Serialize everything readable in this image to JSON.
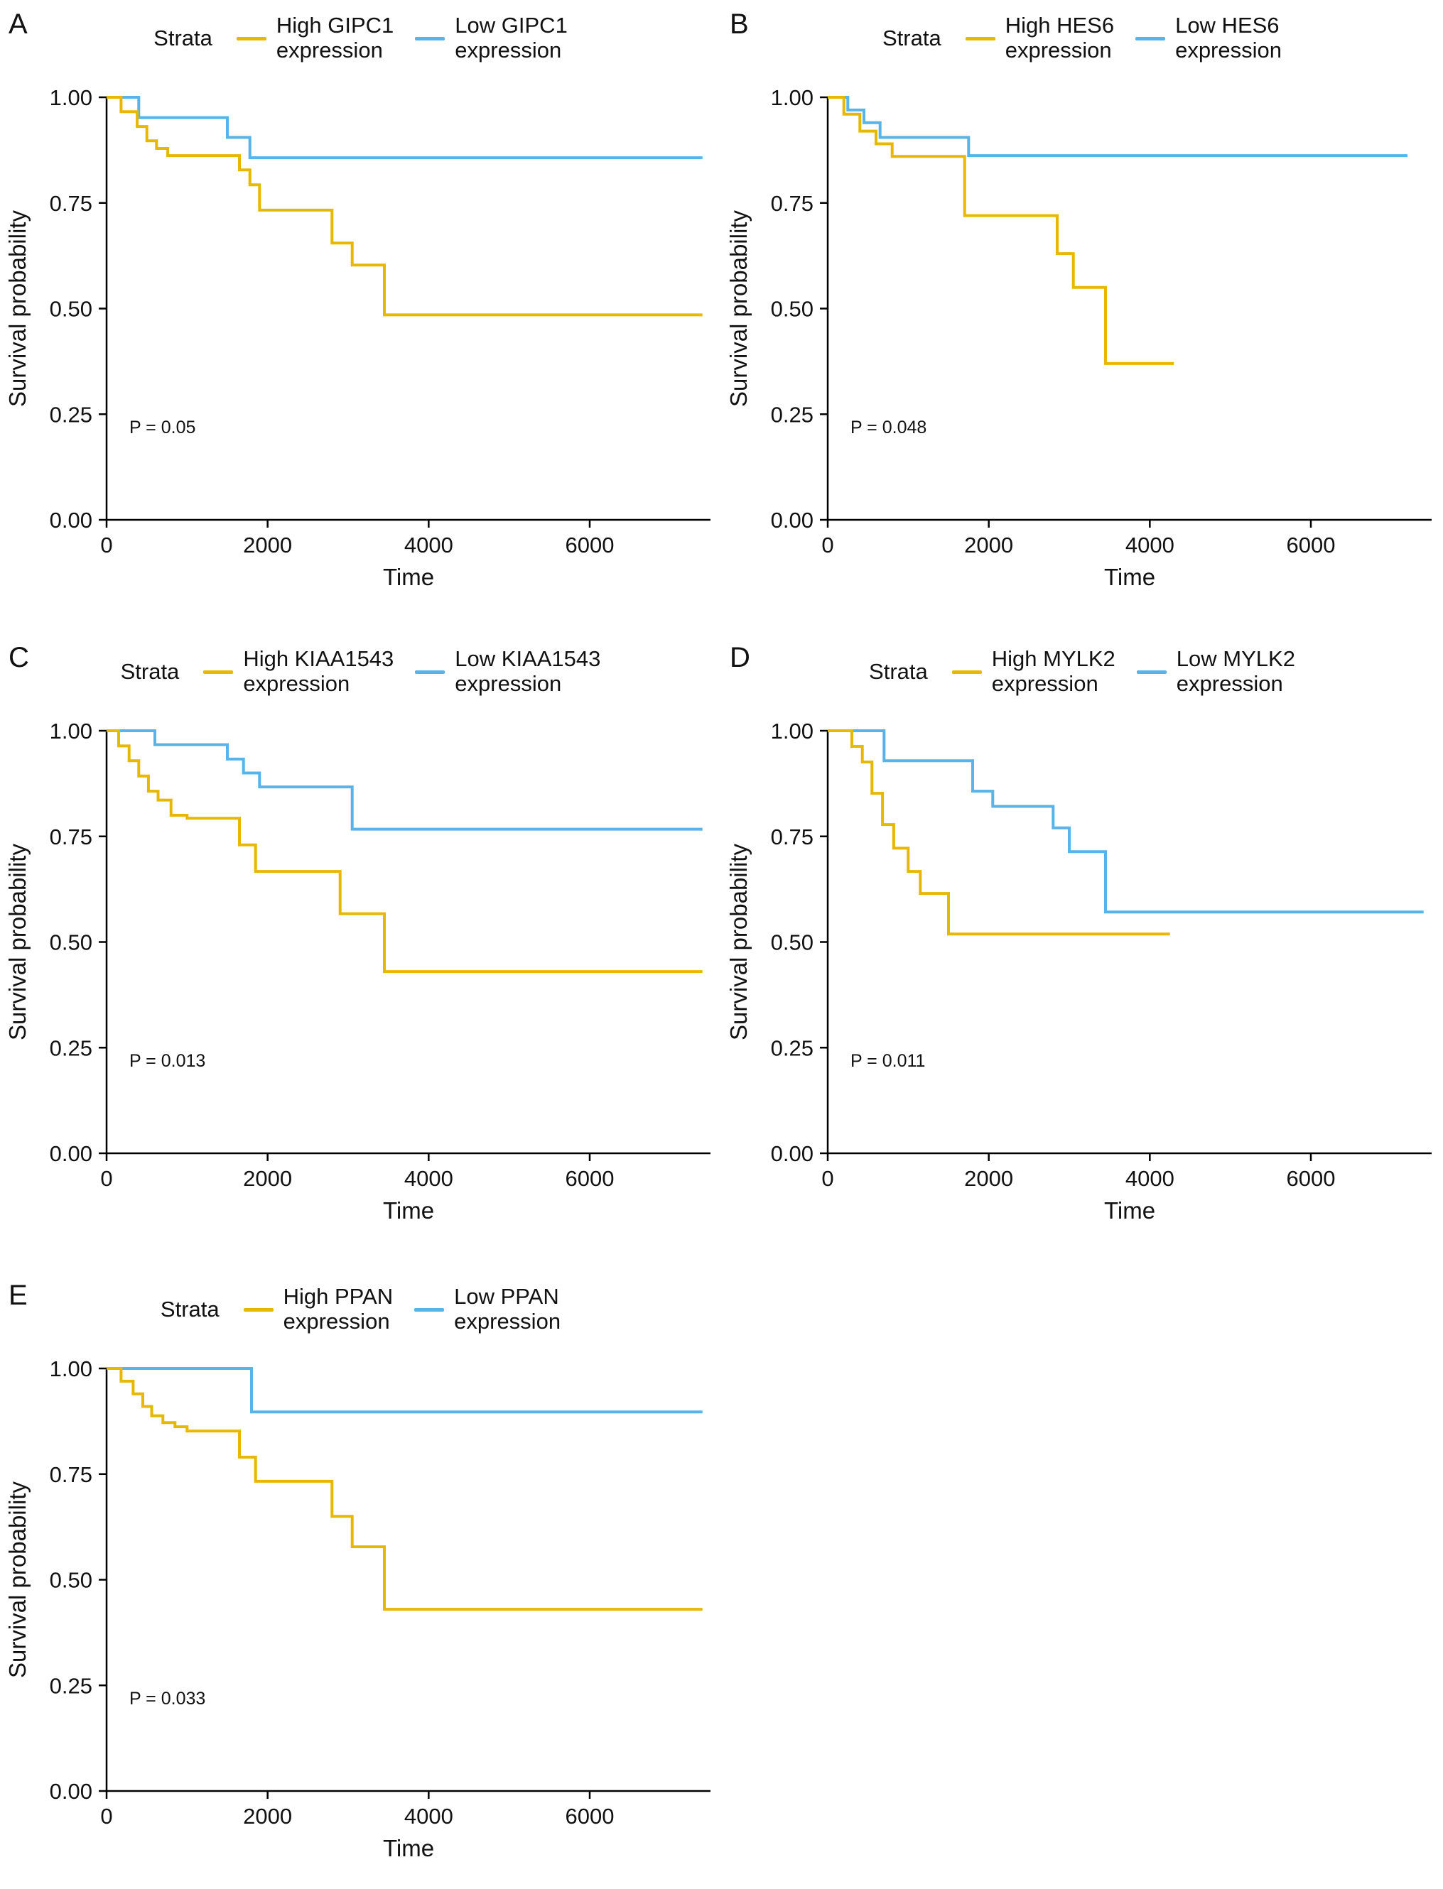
{
  "figure": {
    "background": "#ffffff",
    "legend_title": "Strata"
  },
  "colors": {
    "high": "#E7B800",
    "low": "#56B4E9",
    "axis": "#000000",
    "text": "#111111"
  },
  "chart_data": [
    {
      "type": "line",
      "subtype": "kaplan-meier-step",
      "panel": "A",
      "gene": "GIPC1",
      "legend_title": "Strata",
      "legend": [
        "High GIPC1\nexpression",
        "Low GIPC1\nexpression"
      ],
      "p_value": "P = 0.05",
      "xlabel": "Time",
      "ylabel": "Survival probability",
      "xlim": [
        0,
        7500
      ],
      "ylim": [
        0,
        1
      ],
      "xticks": [
        0,
        2000,
        4000,
        6000
      ],
      "ytick_labels": [
        "0.00",
        "0.25",
        "0.50",
        "0.75",
        "1.00"
      ],
      "yticks": [
        0,
        0.25,
        0.5,
        0.75,
        1
      ],
      "legend_position": "top",
      "grid": false,
      "series": [
        {
          "name": "High GIPC1 expression",
          "color_key": "high",
          "points": [
            [
              0,
              1.0
            ],
            [
              180,
              0.966
            ],
            [
              380,
              0.931
            ],
            [
              500,
              0.897
            ],
            [
              620,
              0.879
            ],
            [
              760,
              0.862
            ],
            [
              1650,
              0.828
            ],
            [
              1780,
              0.793
            ],
            [
              1900,
              0.733
            ],
            [
              2800,
              0.655
            ],
            [
              3050,
              0.603
            ],
            [
              3450,
              0.485
            ],
            [
              7400,
              0.485
            ]
          ]
        },
        {
          "name": "Low GIPC1 expression",
          "color_key": "low",
          "points": [
            [
              0,
              1.0
            ],
            [
              400,
              0.952
            ],
            [
              1500,
              0.905
            ],
            [
              1780,
              0.857
            ],
            [
              7400,
              0.857
            ]
          ]
        }
      ]
    },
    {
      "type": "line",
      "subtype": "kaplan-meier-step",
      "panel": "B",
      "gene": "HES6",
      "legend_title": "Strata",
      "legend": [
        "High HES6\nexpression",
        "Low HES6\nexpression"
      ],
      "p_value": "P = 0.048",
      "xlabel": "Time",
      "ylabel": "Survival probability",
      "xlim": [
        0,
        7500
      ],
      "ylim": [
        0,
        1
      ],
      "xticks": [
        0,
        2000,
        4000,
        6000
      ],
      "ytick_labels": [
        "0.00",
        "0.25",
        "0.50",
        "0.75",
        "1.00"
      ],
      "yticks": [
        0,
        0.25,
        0.5,
        0.75,
        1
      ],
      "legend_position": "top",
      "grid": false,
      "series": [
        {
          "name": "High HES6 expression",
          "color_key": "high",
          "points": [
            [
              0,
              1.0
            ],
            [
              200,
              0.96
            ],
            [
              400,
              0.92
            ],
            [
              600,
              0.89
            ],
            [
              800,
              0.86
            ],
            [
              1700,
              0.72
            ],
            [
              2850,
              0.63
            ],
            [
              3050,
              0.55
            ],
            [
              3450,
              0.37
            ],
            [
              4300,
              0.37
            ]
          ]
        },
        {
          "name": "Low HES6 expression",
          "color_key": "low",
          "points": [
            [
              0,
              1.0
            ],
            [
              250,
              0.97
            ],
            [
              450,
              0.94
            ],
            [
              650,
              0.905
            ],
            [
              1750,
              0.862
            ],
            [
              7200,
              0.862
            ]
          ]
        }
      ]
    },
    {
      "type": "line",
      "subtype": "kaplan-meier-step",
      "panel": "C",
      "gene": "KIAA1543",
      "legend_title": "Strata",
      "legend": [
        "High KIAA1543\nexpression",
        "Low KIAA1543\nexpression"
      ],
      "p_value": "P = 0.013",
      "xlabel": "Time",
      "ylabel": "Survival probability",
      "xlim": [
        0,
        7500
      ],
      "ylim": [
        0,
        1
      ],
      "xticks": [
        0,
        2000,
        4000,
        6000
      ],
      "ytick_labels": [
        "0.00",
        "0.25",
        "0.50",
        "0.75",
        "1.00"
      ],
      "yticks": [
        0,
        0.25,
        0.5,
        0.75,
        1
      ],
      "legend_position": "top",
      "grid": false,
      "series": [
        {
          "name": "High KIAA1543 expression",
          "color_key": "high",
          "points": [
            [
              0,
              1.0
            ],
            [
              150,
              0.964
            ],
            [
              280,
              0.929
            ],
            [
              400,
              0.893
            ],
            [
              520,
              0.857
            ],
            [
              640,
              0.836
            ],
            [
              800,
              0.8
            ],
            [
              1000,
              0.793
            ],
            [
              1650,
              0.73
            ],
            [
              1850,
              0.667
            ],
            [
              2900,
              0.567
            ],
            [
              3450,
              0.43
            ],
            [
              7400,
              0.43
            ]
          ]
        },
        {
          "name": "Low KIAA1543 expression",
          "color_key": "low",
          "points": [
            [
              0,
              1.0
            ],
            [
              600,
              0.967
            ],
            [
              1500,
              0.933
            ],
            [
              1700,
              0.9
            ],
            [
              1900,
              0.867
            ],
            [
              3050,
              0.767
            ],
            [
              7400,
              0.767
            ]
          ]
        }
      ]
    },
    {
      "type": "line",
      "subtype": "kaplan-meier-step",
      "panel": "D",
      "gene": "MYLK2",
      "legend_title": "Strata",
      "legend": [
        "High MYLK2\nexpression",
        "Low MYLK2\nexpression"
      ],
      "p_value": "P = 0.011",
      "xlabel": "Time",
      "ylabel": "Survival probability",
      "xlim": [
        0,
        7500
      ],
      "ylim": [
        0,
        1
      ],
      "xticks": [
        0,
        2000,
        4000,
        6000
      ],
      "ytick_labels": [
        "0.00",
        "0.25",
        "0.50",
        "0.75",
        "1.00"
      ],
      "yticks": [
        0,
        0.25,
        0.5,
        0.75,
        1
      ],
      "legend_position": "top",
      "grid": false,
      "series": [
        {
          "name": "High MYLK2 expression",
          "color_key": "high",
          "points": [
            [
              0,
              1.0
            ],
            [
              300,
              0.963
            ],
            [
              430,
              0.926
            ],
            [
              550,
              0.852
            ],
            [
              680,
              0.778
            ],
            [
              820,
              0.722
            ],
            [
              1000,
              0.667
            ],
            [
              1150,
              0.615
            ],
            [
              1500,
              0.519
            ],
            [
              4250,
              0.519
            ]
          ]
        },
        {
          "name": "Low MYLK2 expression",
          "color_key": "low",
          "points": [
            [
              0,
              1.0
            ],
            [
              700,
              0.929
            ],
            [
              1800,
              0.857
            ],
            [
              2050,
              0.821
            ],
            [
              2800,
              0.77
            ],
            [
              3000,
              0.714
            ],
            [
              3450,
              0.571
            ],
            [
              7400,
              0.571
            ]
          ]
        }
      ]
    },
    {
      "type": "line",
      "subtype": "kaplan-meier-step",
      "panel": "E",
      "gene": "PPAN",
      "legend_title": "Strata",
      "legend": [
        "High PPAN\nexpression",
        "Low PPAN\nexpression"
      ],
      "p_value": "P = 0.033",
      "xlabel": "Time",
      "ylabel": "Survival probability",
      "xlim": [
        0,
        7500
      ],
      "ylim": [
        0,
        1
      ],
      "xticks": [
        0,
        2000,
        4000,
        6000
      ],
      "ytick_labels": [
        "0.00",
        "0.25",
        "0.50",
        "0.75",
        "1.00"
      ],
      "yticks": [
        0,
        0.25,
        0.5,
        0.75,
        1
      ],
      "legend_position": "top",
      "grid": false,
      "series": [
        {
          "name": "High PPAN expression",
          "color_key": "high",
          "points": [
            [
              0,
              1.0
            ],
            [
              180,
              0.97
            ],
            [
              330,
              0.94
            ],
            [
              450,
              0.91
            ],
            [
              560,
              0.888
            ],
            [
              700,
              0.872
            ],
            [
              850,
              0.862
            ],
            [
              1000,
              0.852
            ],
            [
              1650,
              0.79
            ],
            [
              1850,
              0.733
            ],
            [
              2800,
              0.65
            ],
            [
              3050,
              0.578
            ],
            [
              3450,
              0.43
            ],
            [
              7400,
              0.43
            ]
          ]
        },
        {
          "name": "Low PPAN expression",
          "color_key": "low",
          "points": [
            [
              0,
              1.0
            ],
            [
              1800,
              0.897
            ],
            [
              7400,
              0.897
            ]
          ]
        }
      ]
    }
  ]
}
